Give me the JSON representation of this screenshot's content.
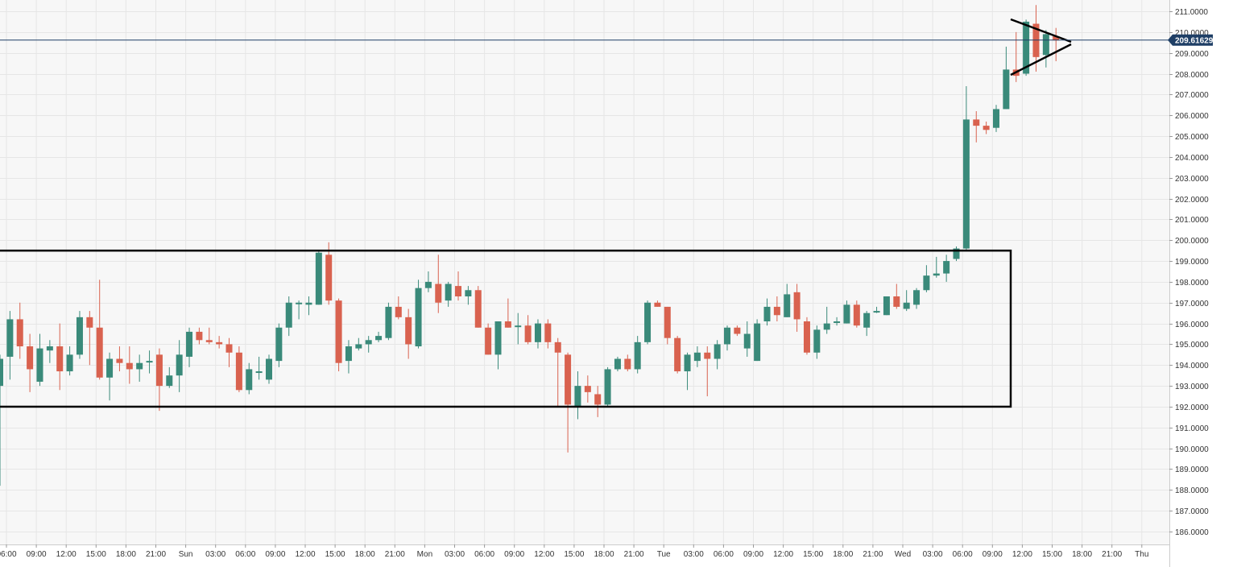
{
  "chart_data": {
    "type": "candlestick",
    "title": "",
    "xlabel": "",
    "ylabel": "",
    "ylim": [
      185.5,
      211.5
    ],
    "grid": true,
    "colors": {
      "up": "#3a8a7a",
      "down": "#d9624f",
      "background": "#f7f7f7",
      "grid": "#e6e6e6",
      "current_price_line": "#1f3f66",
      "annotation": "#000000"
    },
    "y_ticks": [
      "186.0000",
      "187.0000",
      "188.0000",
      "189.0000",
      "190.0000",
      "191.0000",
      "192.0000",
      "193.0000",
      "194.0000",
      "195.0000",
      "196.0000",
      "197.0000",
      "198.0000",
      "199.0000",
      "200.0000",
      "201.0000",
      "202.0000",
      "203.0000",
      "204.0000",
      "205.0000",
      "206.0000",
      "207.0000",
      "208.0000",
      "209.0000",
      "210.0000",
      "211.0000"
    ],
    "x_ticks": [
      "06:00",
      "09:00",
      "12:00",
      "15:00",
      "18:00",
      "21:00",
      "Sun",
      "03:00",
      "06:00",
      "09:00",
      "12:00",
      "15:00",
      "18:00",
      "21:00",
      "Mon",
      "03:00",
      "06:00",
      "09:00",
      "12:00",
      "15:00",
      "18:00",
      "21:00",
      "Tue",
      "03:00",
      "06:00",
      "09:00",
      "12:00",
      "15:00",
      "18:00",
      "21:00",
      "Wed",
      "03:00",
      "06:00",
      "09:00",
      "12:00",
      "15:00",
      "18:00",
      "21:00",
      "Thu"
    ],
    "current_price": 209.61629,
    "current_price_label": "209.61629",
    "candles": [
      {
        "o": 193.0,
        "h": 194.5,
        "l": 188.2,
        "c": 194.3
      },
      {
        "o": 194.4,
        "h": 196.6,
        "l": 193.3,
        "c": 196.2
      },
      {
        "o": 196.2,
        "h": 197.0,
        "l": 194.3,
        "c": 194.9
      },
      {
        "o": 194.9,
        "h": 195.5,
        "l": 192.7,
        "c": 193.8
      },
      {
        "o": 193.2,
        "h": 195.5,
        "l": 193.0,
        "c": 194.8
      },
      {
        "o": 194.7,
        "h": 195.2,
        "l": 194.1,
        "c": 194.9
      },
      {
        "o": 194.9,
        "h": 196.0,
        "l": 192.8,
        "c": 193.7
      },
      {
        "o": 193.7,
        "h": 194.9,
        "l": 193.5,
        "c": 194.5
      },
      {
        "o": 194.5,
        "h": 196.6,
        "l": 194.3,
        "c": 196.3
      },
      {
        "o": 196.3,
        "h": 196.6,
        "l": 194.0,
        "c": 195.8
      },
      {
        "o": 195.8,
        "h": 198.1,
        "l": 193.3,
        "c": 193.4
      },
      {
        "o": 193.4,
        "h": 194.6,
        "l": 192.3,
        "c": 194.3
      },
      {
        "o": 194.3,
        "h": 194.9,
        "l": 193.7,
        "c": 194.1
      },
      {
        "o": 194.1,
        "h": 194.9,
        "l": 193.1,
        "c": 193.8
      },
      {
        "o": 193.8,
        "h": 194.5,
        "l": 193.2,
        "c": 194.1
      },
      {
        "o": 194.2,
        "h": 194.7,
        "l": 193.6,
        "c": 194.2
      },
      {
        "o": 194.5,
        "h": 194.8,
        "l": 191.8,
        "c": 193.0
      },
      {
        "o": 193.0,
        "h": 193.9,
        "l": 192.9,
        "c": 193.5
      },
      {
        "o": 193.5,
        "h": 195.2,
        "l": 192.7,
        "c": 194.5
      },
      {
        "o": 194.4,
        "h": 195.8,
        "l": 193.9,
        "c": 195.6
      },
      {
        "o": 195.6,
        "h": 195.8,
        "l": 195.0,
        "c": 195.2
      },
      {
        "o": 195.2,
        "h": 195.8,
        "l": 195.0,
        "c": 195.1
      },
      {
        "o": 195.1,
        "h": 195.4,
        "l": 194.8,
        "c": 195.0
      },
      {
        "o": 195.0,
        "h": 195.3,
        "l": 193.9,
        "c": 194.6
      },
      {
        "o": 194.6,
        "h": 194.9,
        "l": 192.7,
        "c": 192.8
      },
      {
        "o": 192.8,
        "h": 194.1,
        "l": 192.6,
        "c": 193.8
      },
      {
        "o": 193.7,
        "h": 194.4,
        "l": 193.3,
        "c": 193.7
      },
      {
        "o": 193.3,
        "h": 194.5,
        "l": 193.1,
        "c": 194.3
      },
      {
        "o": 194.2,
        "h": 196.0,
        "l": 193.9,
        "c": 195.8
      },
      {
        "o": 195.8,
        "h": 197.3,
        "l": 195.4,
        "c": 197.0
      },
      {
        "o": 197.0,
        "h": 197.1,
        "l": 196.2,
        "c": 197.0
      },
      {
        "o": 196.9,
        "h": 197.3,
        "l": 196.4,
        "c": 197.0
      },
      {
        "o": 196.9,
        "h": 199.5,
        "l": 196.9,
        "c": 199.4
      },
      {
        "o": 199.3,
        "h": 199.9,
        "l": 196.9,
        "c": 197.1
      },
      {
        "o": 197.1,
        "h": 197.2,
        "l": 193.7,
        "c": 194.1
      },
      {
        "o": 194.2,
        "h": 195.2,
        "l": 193.6,
        "c": 194.9
      },
      {
        "o": 194.8,
        "h": 195.3,
        "l": 194.7,
        "c": 195.0
      },
      {
        "o": 195.0,
        "h": 195.4,
        "l": 194.6,
        "c": 195.2
      },
      {
        "o": 195.2,
        "h": 195.6,
        "l": 195.1,
        "c": 195.4
      },
      {
        "o": 195.3,
        "h": 197.0,
        "l": 195.2,
        "c": 196.8
      },
      {
        "o": 196.8,
        "h": 197.3,
        "l": 196.2,
        "c": 196.3
      },
      {
        "o": 196.3,
        "h": 196.7,
        "l": 194.3,
        "c": 195.0
      },
      {
        "o": 194.9,
        "h": 198.1,
        "l": 194.8,
        "c": 197.7
      },
      {
        "o": 197.7,
        "h": 198.5,
        "l": 197.5,
        "c": 198.0
      },
      {
        "o": 197.9,
        "h": 199.3,
        "l": 196.5,
        "c": 197.0
      },
      {
        "o": 197.1,
        "h": 198.0,
        "l": 196.8,
        "c": 197.9
      },
      {
        "o": 197.8,
        "h": 198.5,
        "l": 197.1,
        "c": 197.3
      },
      {
        "o": 197.3,
        "h": 197.8,
        "l": 196.9,
        "c": 197.6
      },
      {
        "o": 197.6,
        "h": 197.8,
        "l": 195.8,
        "c": 195.8
      },
      {
        "o": 195.8,
        "h": 196.0,
        "l": 194.5,
        "c": 194.5
      },
      {
        "o": 194.5,
        "h": 196.1,
        "l": 193.8,
        "c": 196.1
      },
      {
        "o": 196.1,
        "h": 197.2,
        "l": 195.8,
        "c": 195.8
      },
      {
        "o": 195.9,
        "h": 196.5,
        "l": 195.0,
        "c": 195.9
      },
      {
        "o": 195.9,
        "h": 196.4,
        "l": 195.0,
        "c": 195.1
      },
      {
        "o": 195.1,
        "h": 196.2,
        "l": 194.8,
        "c": 196.0
      },
      {
        "o": 196.0,
        "h": 196.2,
        "l": 194.8,
        "c": 195.1
      },
      {
        "o": 195.1,
        "h": 195.3,
        "l": 192.0,
        "c": 194.6
      },
      {
        "o": 194.5,
        "h": 194.6,
        "l": 189.8,
        "c": 192.1
      },
      {
        "o": 192.0,
        "h": 193.7,
        "l": 191.4,
        "c": 193.0
      },
      {
        "o": 193.0,
        "h": 193.5,
        "l": 192.2,
        "c": 192.7
      },
      {
        "o": 192.6,
        "h": 193.0,
        "l": 191.5,
        "c": 192.1
      },
      {
        "o": 192.1,
        "h": 193.9,
        "l": 192.0,
        "c": 193.8
      },
      {
        "o": 193.8,
        "h": 194.4,
        "l": 193.7,
        "c": 194.3
      },
      {
        "o": 194.3,
        "h": 194.5,
        "l": 193.7,
        "c": 193.8
      },
      {
        "o": 193.8,
        "h": 195.4,
        "l": 193.6,
        "c": 195.1
      },
      {
        "o": 195.1,
        "h": 197.1,
        "l": 195.0,
        "c": 197.0
      },
      {
        "o": 197.0,
        "h": 197.1,
        "l": 196.8,
        "c": 196.8
      },
      {
        "o": 196.8,
        "h": 196.8,
        "l": 195.0,
        "c": 195.3
      },
      {
        "o": 195.3,
        "h": 195.4,
        "l": 193.6,
        "c": 193.7
      },
      {
        "o": 193.7,
        "h": 194.6,
        "l": 192.8,
        "c": 194.5
      },
      {
        "o": 194.2,
        "h": 194.9,
        "l": 193.9,
        "c": 194.6
      },
      {
        "o": 194.6,
        "h": 194.9,
        "l": 192.5,
        "c": 194.3
      },
      {
        "o": 194.3,
        "h": 195.2,
        "l": 193.8,
        "c": 195.0
      },
      {
        "o": 195.0,
        "h": 195.9,
        "l": 194.7,
        "c": 195.8
      },
      {
        "o": 195.8,
        "h": 195.9,
        "l": 195.4,
        "c": 195.5
      },
      {
        "o": 194.8,
        "h": 196.1,
        "l": 194.4,
        "c": 195.5
      },
      {
        "o": 194.2,
        "h": 196.2,
        "l": 194.2,
        "c": 196.0
      },
      {
        "o": 196.1,
        "h": 197.2,
        "l": 195.9,
        "c": 196.8
      },
      {
        "o": 196.8,
        "h": 197.3,
        "l": 196.1,
        "c": 196.4
      },
      {
        "o": 196.3,
        "h": 197.9,
        "l": 196.3,
        "c": 197.4
      },
      {
        "o": 197.5,
        "h": 197.9,
        "l": 195.6,
        "c": 196.2
      },
      {
        "o": 196.1,
        "h": 196.3,
        "l": 194.5,
        "c": 194.6
      },
      {
        "o": 194.6,
        "h": 195.9,
        "l": 194.3,
        "c": 195.7
      },
      {
        "o": 195.7,
        "h": 196.8,
        "l": 195.5,
        "c": 196.0
      },
      {
        "o": 196.1,
        "h": 196.3,
        "l": 195.9,
        "c": 196.1
      },
      {
        "o": 196.0,
        "h": 197.1,
        "l": 196.0,
        "c": 196.9
      },
      {
        "o": 196.9,
        "h": 197.1,
        "l": 195.8,
        "c": 195.9
      },
      {
        "o": 195.8,
        "h": 196.6,
        "l": 195.4,
        "c": 196.5
      },
      {
        "o": 196.6,
        "h": 196.8,
        "l": 196.5,
        "c": 196.6
      },
      {
        "o": 196.4,
        "h": 197.3,
        "l": 196.4,
        "c": 197.3
      },
      {
        "o": 197.3,
        "h": 197.9,
        "l": 196.7,
        "c": 196.8
      },
      {
        "o": 196.7,
        "h": 197.6,
        "l": 196.6,
        "c": 197.0
      },
      {
        "o": 196.9,
        "h": 197.7,
        "l": 196.7,
        "c": 197.6
      },
      {
        "o": 197.6,
        "h": 198.8,
        "l": 197.5,
        "c": 198.3
      },
      {
        "o": 198.3,
        "h": 199.2,
        "l": 198.2,
        "c": 198.4
      },
      {
        "o": 198.4,
        "h": 199.3,
        "l": 198.0,
        "c": 199.0
      },
      {
        "o": 199.1,
        "h": 199.7,
        "l": 199.0,
        "c": 199.6
      },
      {
        "o": 199.6,
        "h": 207.4,
        "l": 199.5,
        "c": 205.8
      },
      {
        "o": 205.8,
        "h": 206.2,
        "l": 204.7,
        "c": 205.5
      },
      {
        "o": 205.5,
        "h": 205.7,
        "l": 205.1,
        "c": 205.3
      },
      {
        "o": 205.4,
        "h": 206.5,
        "l": 205.2,
        "c": 206.3
      },
      {
        "o": 206.3,
        "h": 209.3,
        "l": 206.3,
        "c": 208.2
      },
      {
        "o": 208.2,
        "h": 210.0,
        "l": 207.6,
        "c": 207.9
      },
      {
        "o": 208.0,
        "h": 210.6,
        "l": 207.9,
        "c": 210.5
      },
      {
        "o": 210.4,
        "h": 211.3,
        "l": 208.1,
        "c": 208.8
      },
      {
        "o": 208.9,
        "h": 210.1,
        "l": 208.3,
        "c": 209.9
      },
      {
        "o": 209.8,
        "h": 210.2,
        "l": 208.6,
        "c": 209.6
      }
    ],
    "annotations": [
      {
        "type": "rectangle",
        "y_top": 199.5,
        "y_bottom": 192.0
      },
      {
        "type": "triangle"
      }
    ]
  }
}
